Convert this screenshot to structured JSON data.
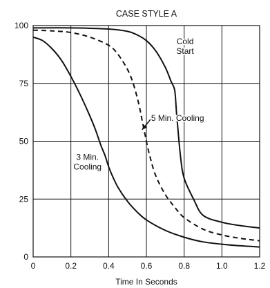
{
  "chart_data": {
    "type": "line",
    "title": "CASE STYLE A",
    "xlabel": "Time In Seconds",
    "ylabel": "",
    "xlim": [
      0,
      1.2
    ],
    "ylim": [
      0,
      100
    ],
    "xticks": [
      "0",
      "0.2",
      "0.4",
      "0.6",
      "0.8",
      "1.0",
      "1.2"
    ],
    "yticks": [
      "0",
      "25",
      "50",
      "75",
      "100"
    ],
    "grid": true,
    "series": [
      {
        "style": "solid",
        "x": [
          0,
          0.05,
          0.1,
          0.15,
          0.2,
          0.25,
          0.3,
          0.33,
          0.36,
          0.38,
          0.4,
          0.42,
          0.45,
          0.5,
          0.55,
          0.6,
          0.7,
          0.8,
          0.9,
          1.0,
          1.1,
          1.2
        ],
        "y": [
          95,
          93.5,
          90,
          85,
          78,
          70,
          61,
          55,
          48,
          44,
          39,
          35,
          30,
          24,
          19.5,
          16,
          11.5,
          8.5,
          6.5,
          5.5,
          4.8,
          4.3
        ]
      },
      {
        "style": "dashed",
        "x": [
          0,
          0.1,
          0.2,
          0.3,
          0.4,
          0.45,
          0.5,
          0.53,
          0.56,
          0.58,
          0.6,
          0.62,
          0.65,
          0.7,
          0.75,
          0.8,
          0.9,
          1.0,
          1.1,
          1.2
        ],
        "y": [
          98,
          97.7,
          97,
          95,
          91.5,
          87.5,
          81,
          75,
          66,
          58,
          50,
          43,
          35,
          27,
          21.5,
          17,
          12,
          9.5,
          8,
          7
        ]
      },
      {
        "style": "solid",
        "x": [
          0,
          0.2,
          0.4,
          0.5,
          0.55,
          0.6,
          0.65,
          0.7,
          0.73,
          0.75,
          0.76,
          0.78,
          0.8,
          0.85,
          0.9,
          1.0,
          1.1,
          1.2
        ],
        "y": [
          99,
          99,
          98.5,
          97.5,
          96,
          93.5,
          89,
          82,
          76,
          72,
          62,
          44,
          34,
          25,
          18,
          15,
          13.5,
          12.5
        ]
      }
    ],
    "annotations": [
      {
        "text": [
          "Cold",
          "Start"
        ],
        "x": 0.805,
        "y": 91
      },
      {
        "text": [
          "5 Min. Cooling"
        ],
        "x": 0.625,
        "y": 60
      },
      {
        "text": [
          "3 Min.",
          "Cooling"
        ],
        "x": 0.288,
        "y": 41
      }
    ],
    "arrow": {
      "from": [
        0.625,
        60
      ],
      "to": [
        0.578,
        55
      ]
    }
  }
}
